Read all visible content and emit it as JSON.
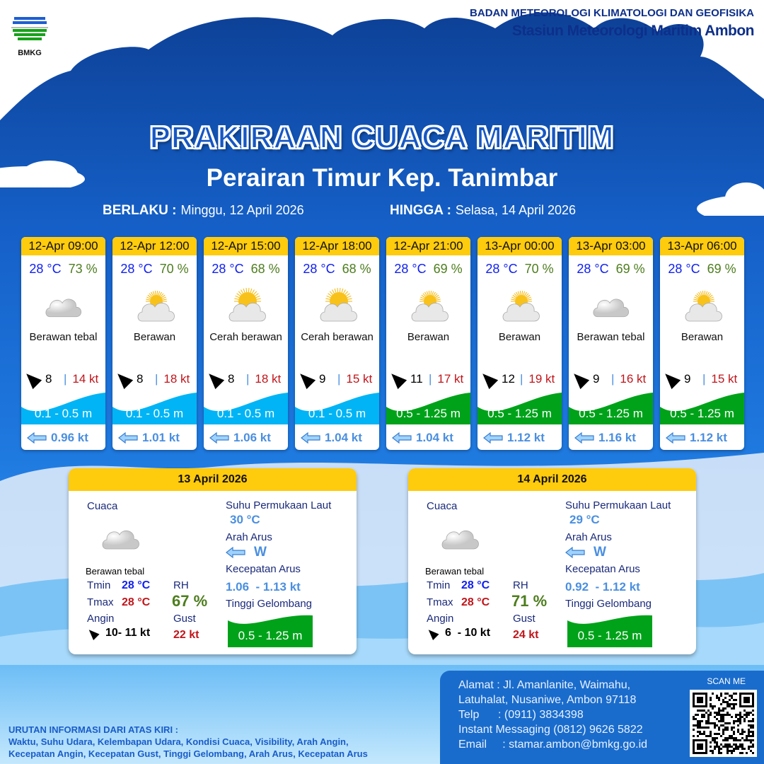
{
  "header": {
    "logo_text": "BMKG",
    "org": "BADAN METEOROLOGI KLIMATOLOGI DAN GEOFISIKA",
    "station": "Stasiun Meteorologi Maritim Ambon"
  },
  "title": "PRAKIRAAN CUACA MARITIM",
  "subtitle": "Perairan Timur Kep. Tanimbar",
  "validity": {
    "from_label": "BERLAKU :",
    "from": "Minggu, 12 April 2026",
    "to_label": "HINGGA :",
    "to": "Selasa, 14 April 2026"
  },
  "colors": {
    "header_yellow": "#ffcb0d",
    "wave_low": "#00b4f5",
    "wave_mid": "#00a21a",
    "temp": "#1020f0",
    "humidity": "#4d7d1e",
    "gust": "#c0151a",
    "current": "#4a8fe0"
  },
  "forecasts": [
    {
      "time": "12-Apr 09:00",
      "temp": "28 °C",
      "rh": "73 %",
      "icon": "cloud-icon",
      "desc": "Berawan tebal",
      "wind": "8",
      "gust": "14 kt",
      "wave": "0.1 - 0.5 m",
      "wave_level": "low",
      "current": "0.96 kt"
    },
    {
      "time": "12-Apr 12:00",
      "temp": "28 °C",
      "rh": "70 %",
      "icon": "partly-cloudy-icon",
      "desc": "Berawan",
      "wind": "8",
      "gust": "18 kt",
      "wave": "0.1 - 0.5 m",
      "wave_level": "low",
      "current": "1.01 kt"
    },
    {
      "time": "12-Apr 15:00",
      "temp": "28 °C",
      "rh": "68 %",
      "icon": "sun-cloud-icon",
      "desc": "Cerah berawan",
      "wind": "8",
      "gust": "18 kt",
      "wave": "0.1 - 0.5 m",
      "wave_level": "low",
      "current": "1.06 kt"
    },
    {
      "time": "12-Apr 18:00",
      "temp": "28 °C",
      "rh": "68 %",
      "icon": "sun-cloud-icon",
      "desc": "Cerah berawan",
      "wind": "9",
      "gust": "15 kt",
      "wave": "0.1 - 0.5 m",
      "wave_level": "low",
      "current": "1.04 kt"
    },
    {
      "time": "12-Apr 21:00",
      "temp": "28 °C",
      "rh": "69 %",
      "icon": "partly-cloudy-icon",
      "desc": "Berawan",
      "wind": "11",
      "gust": "17 kt",
      "wave": "0.5 - 1.25 m",
      "wave_level": "mid",
      "current": "1.04 kt"
    },
    {
      "time": "13-Apr 00:00",
      "temp": "28 °C",
      "rh": "70 %",
      "icon": "partly-cloudy-icon",
      "desc": "Berawan",
      "wind": "12",
      "gust": "19 kt",
      "wave": "0.5 - 1.25 m",
      "wave_level": "mid",
      "current": "1.12 kt"
    },
    {
      "time": "13-Apr 03:00",
      "temp": "28 °C",
      "rh": "69 %",
      "icon": "cloud-icon",
      "desc": "Berawan tebal",
      "wind": "9",
      "gust": "16 kt",
      "wave": "0.5 - 1.25 m",
      "wave_level": "mid",
      "current": "1.16 kt"
    },
    {
      "time": "13-Apr 06:00",
      "temp": "28 °C",
      "rh": "69 %",
      "icon": "partly-cloudy-icon",
      "desc": "Berawan",
      "wind": "9",
      "gust": "15 kt",
      "wave": "0.5 - 1.25 m",
      "wave_level": "mid",
      "current": "1.12 kt"
    }
  ],
  "summary_labels": {
    "weather": "Cuaca",
    "sst": "Suhu Permukaan Laut",
    "current_dir": "Arah Arus",
    "current_speed": "Kecepatan Arus",
    "wave": "Tinggi Gelombang",
    "tmin": "Tmin",
    "tmax": "Tmax",
    "rh": "RH",
    "wind": "Angin",
    "gust": "Gust"
  },
  "daily": [
    {
      "date": "13 April 2026",
      "desc": "Berawan tebal",
      "tmin": "28 °C",
      "tmax": "28 °C",
      "rh": "67 %",
      "wind": "10- 11 kt",
      "gust": "22 kt",
      "sst": "30 °C",
      "current_dir": "W",
      "current_speed": "1.06  - 1.13 kt",
      "wave": "0.5 - 1.25 m"
    },
    {
      "date": "14 April 2026",
      "desc": "Berawan tebal",
      "tmin": "28 °C",
      "tmax": "28 °C",
      "rh": "71 %",
      "wind": "6  - 10 kt",
      "gust": "24 kt",
      "sst": "29 °C",
      "current_dir": "W",
      "current_speed": "0.92  - 1.12 kt",
      "wave": "0.5 - 1.25 m"
    }
  ],
  "footer": {
    "address1": "Alamat : Jl. Amanlanite, Waimahu,",
    "address2": "Latuhalat, Nusaniwe, Ambon 97118",
    "phone": "Telp      : (0911) 3834398",
    "im": "Instant Messaging (0812) 9626 5822",
    "email": "Email     : stamar.ambon@bmkg.go.id",
    "scan": "SCAN ME"
  },
  "legend": {
    "title": "URUTAN INFORMASI DARI ATAS KIRI :",
    "line1": "Waktu, Suhu Udara, Kelembapan Udara, Kondisi Cuaca, Visibility, Arah Angin,",
    "line2": "Kecepatan Angin, Kecepatan Gust, Tinggi Gelombang, Arah Arus, Kecepatan Arus"
  }
}
